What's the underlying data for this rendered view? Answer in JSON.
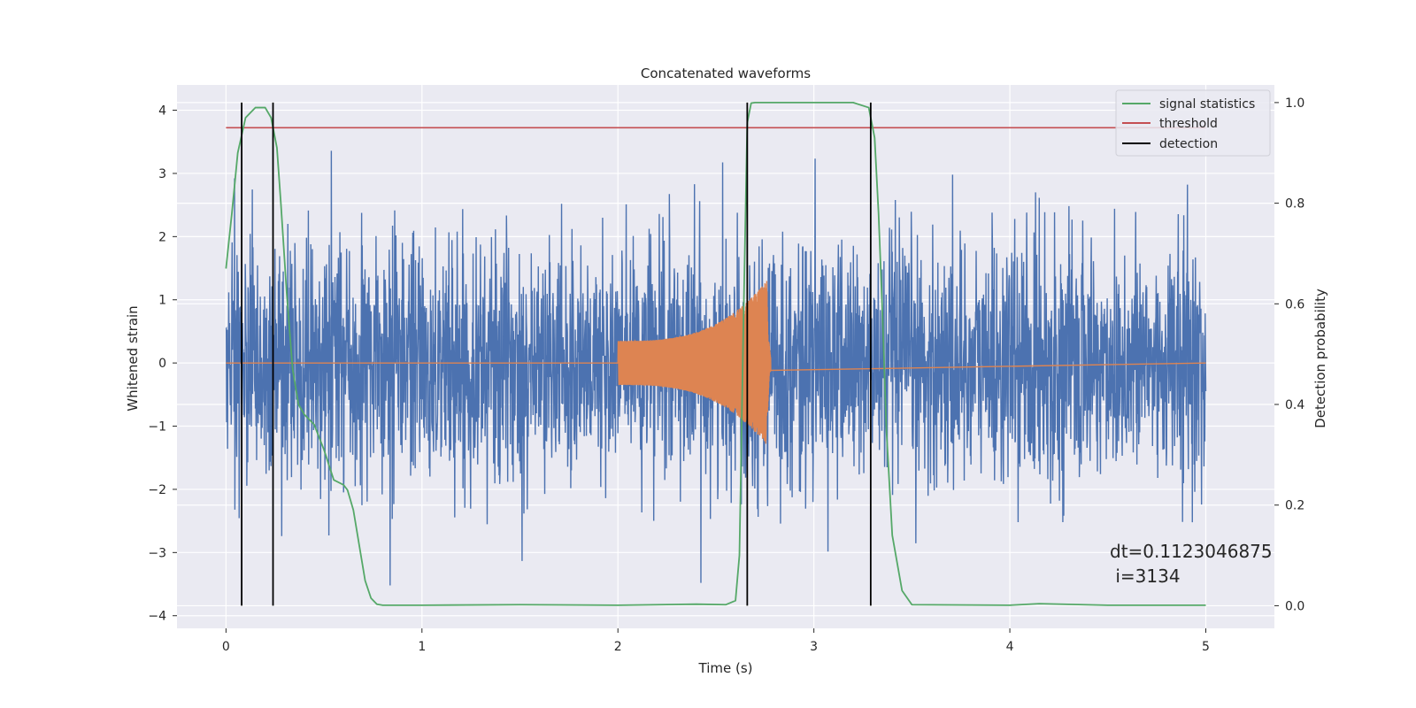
{
  "chart_data": {
    "type": "line",
    "title": "Concatenated waveforms",
    "xlabel": "Time (s)",
    "ylabel_left": "Whitened strain",
    "ylabel_right": "Detection probability",
    "xlim": [
      -0.25,
      5.35
    ],
    "ylim_left": [
      -4.2,
      4.4
    ],
    "ylim_right": [
      -0.045,
      1.035
    ],
    "x_ticks": [
      0,
      1,
      2,
      3,
      4,
      5
    ],
    "y_ticks_left": [
      -4,
      -3,
      -2,
      -1,
      0,
      1,
      2,
      3,
      4
    ],
    "y_ticks_right": [
      0.0,
      0.2,
      0.4,
      0.6,
      0.8,
      1.0
    ],
    "y_tick_labels_left": [
      "−4",
      "−3",
      "−2",
      "−1",
      "0",
      "1",
      "2",
      "3",
      "4"
    ],
    "y_tick_labels_right": [
      "0.0",
      "0.2",
      "0.4",
      "0.6",
      "0.8",
      "1.0"
    ],
    "grid": true,
    "legend_position": "top-right",
    "colors": {
      "strain": "#4c72b0",
      "template": "#dd8452",
      "signal_statistics": "#55a868",
      "threshold": "#c44e52",
      "detection": "#000000",
      "background": "#eaeaf2"
    },
    "series": [
      {
        "name": "",
        "axis": "left",
        "description_type": "noise",
        "x_range": [
          0,
          5
        ],
        "y_envelope": [
          -3.7,
          4.0
        ]
      },
      {
        "name": "",
        "axis": "left",
        "description_type": "chirp",
        "x_range": [
          2.0,
          2.78
        ],
        "amplitude_start": 0.35,
        "amplitude_peak": 1.3,
        "peak_time": 2.76
      },
      {
        "name": "signal statistics",
        "axis": "right",
        "x": [
          0,
          0.03,
          0.06,
          0.1,
          0.15,
          0.2,
          0.23,
          0.26,
          0.28,
          0.31,
          0.34,
          0.37,
          0.4,
          0.45,
          0.5,
          0.55,
          0.6,
          0.62,
          0.65,
          0.68,
          0.71,
          0.74,
          0.77,
          0.8,
          1.0,
          1.5,
          2.0,
          2.4,
          2.55,
          2.6,
          2.62,
          2.64,
          2.66,
          2.68,
          2.7,
          3.0,
          3.2,
          3.28,
          3.31,
          3.33,
          3.35,
          3.37,
          3.4,
          3.45,
          3.5,
          4.0,
          4.15,
          4.5,
          5.0
        ],
        "y": [
          0.67,
          0.78,
          0.9,
          0.97,
          0.99,
          0.99,
          0.97,
          0.91,
          0.8,
          0.62,
          0.47,
          0.4,
          0.38,
          0.36,
          0.31,
          0.25,
          0.24,
          0.23,
          0.19,
          0.12,
          0.05,
          0.015,
          0.003,
          0.001,
          0.001,
          0.002,
          0.001,
          0.003,
          0.002,
          0.01,
          0.1,
          0.55,
          0.96,
          0.999,
          1.0,
          1.0,
          1.0,
          0.99,
          0.93,
          0.78,
          0.58,
          0.35,
          0.14,
          0.03,
          0.002,
          0.001,
          0.004,
          0.001,
          0.001
        ]
      },
      {
        "name": "threshold",
        "axis": "right",
        "x": [
          0,
          5
        ],
        "y": [
          0.95,
          0.95
        ]
      },
      {
        "name": "detection",
        "axis": "right",
        "x_positions": [
          0.08,
          0.24,
          2.66,
          3.29
        ],
        "y_range": [
          0.0,
          1.0
        ]
      }
    ],
    "annotation": {
      "lines": [
        "dt=0.1123046875",
        " i=3134"
      ],
      "x": 4.52,
      "y_right": 0.1
    }
  }
}
